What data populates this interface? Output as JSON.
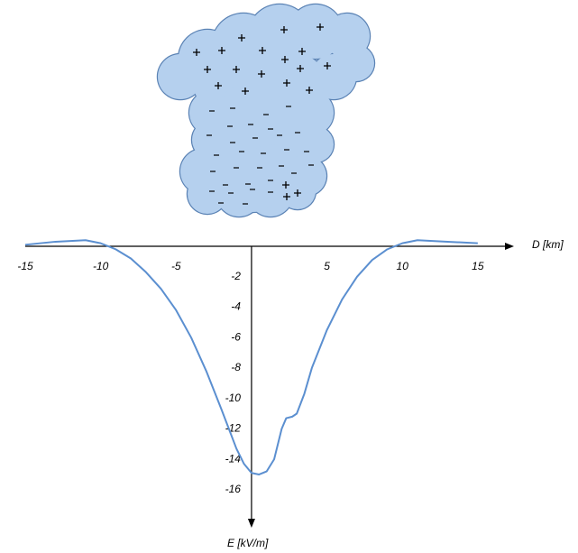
{
  "chart_data": {
    "type": "line",
    "x_label": "D  [km]",
    "y_label": "E  [kV/m]",
    "x": [
      -15,
      -13,
      -11,
      -10,
      -9,
      -8,
      -7,
      -6,
      -5,
      -4,
      -3,
      -2,
      -1.5,
      -1,
      -0.5,
      0,
      0.5,
      1,
      1.5,
      2,
      2.3,
      2.7,
      3,
      3.5,
      4,
      5,
      6,
      7,
      8,
      9,
      10,
      11,
      13,
      15
    ],
    "series": [
      {
        "color": "#5b8fd0",
        "values": [
          0.1,
          0.3,
          0.4,
          0.2,
          -0.2,
          -0.8,
          -1.7,
          -2.8,
          -4.2,
          -6.0,
          -8.2,
          -10.7,
          -12.0,
          -13.3,
          -14.3,
          -14.9,
          -15.0,
          -14.8,
          -14.0,
          -12.0,
          -11.3,
          -11.2,
          -11.0,
          -9.7,
          -8.0,
          -5.5,
          -3.5,
          -2.0,
          -0.9,
          -0.2,
          0.2,
          0.4,
          0.3,
          0.2
        ]
      }
    ],
    "xlim": [
      -15,
      17.4
    ],
    "ylim": [
      -18.5,
      0
    ],
    "xticks": [
      -15,
      -10,
      -5,
      5,
      10,
      15
    ],
    "yticks": [
      -2,
      -4,
      -6,
      -8,
      -10,
      -12,
      -14,
      -16
    ]
  }
}
